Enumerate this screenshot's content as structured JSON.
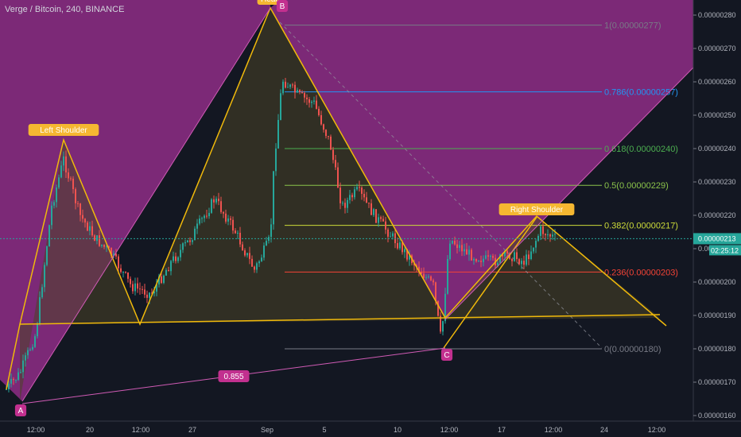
{
  "header": {
    "title": "Verge / Bitcoin, 240, BINANCE"
  },
  "colors": {
    "background": "#131722",
    "pattern_fill": "#8f2d86",
    "pattern_line": "#f0b90b",
    "fib_fill": "#3a3a2c",
    "bull": "#26a69a",
    "bear": "#ef5350",
    "axis_text": "#b2b5be",
    "current_price": "#26a69a",
    "purple_label": "#c2308f",
    "countdown_bg": "#26a69a"
  },
  "chart_data": {
    "type": "candlestick",
    "symbol": "Verge / Bitcoin",
    "interval": "240",
    "exchange": "BINANCE",
    "ylim": [
      1.59e-06,
      2.82e-06
    ],
    "y_ticks": [
      "0.00000280",
      "0.00000270",
      "0.00000260",
      "0.00000250",
      "0.00000240",
      "0.00000230",
      "0.00000220",
      "0.00000210",
      "0.00000200",
      "0.00000190",
      "0.00000180",
      "0.00000170",
      "0.00000160"
    ],
    "x_ticks": [
      "12:00",
      "20",
      "12:00",
      "27",
      "Sep",
      "5",
      "10",
      "12:00",
      "17",
      "12:00",
      "24",
      "12:00"
    ],
    "current_price": "0.00000213",
    "countdown": "02:25:12",
    "fib_levels": [
      {
        "label": "1(0.00000277)",
        "value": 2.77e-06,
        "color": "#787b86"
      },
      {
        "label": "0.786(0.00000257)",
        "value": 2.57e-06,
        "color": "#2196f3"
      },
      {
        "label": "0.618(0.00000240)",
        "value": 2.4e-06,
        "color": "#4caf50"
      },
      {
        "label": "0.5(0.00000229)",
        "value": 2.29e-06,
        "color": "#8bc34a"
      },
      {
        "label": "0.382(0.00000217)",
        "value": 2.17e-06,
        "color": "#cddc39"
      },
      {
        "label": "0.236(0.00000203)",
        "value": 2.03e-06,
        "color": "#f44336"
      },
      {
        "label": "0(0.00000180)",
        "value": 1.8e-06,
        "color": "#787b86"
      }
    ],
    "annotations": {
      "left_shoulder": "Left Shoulder",
      "head": "Head",
      "right_shoulder": "Right Shoulder",
      "point_a": "A",
      "point_b": "B",
      "point_c": "C",
      "ratio": "0.855"
    }
  }
}
